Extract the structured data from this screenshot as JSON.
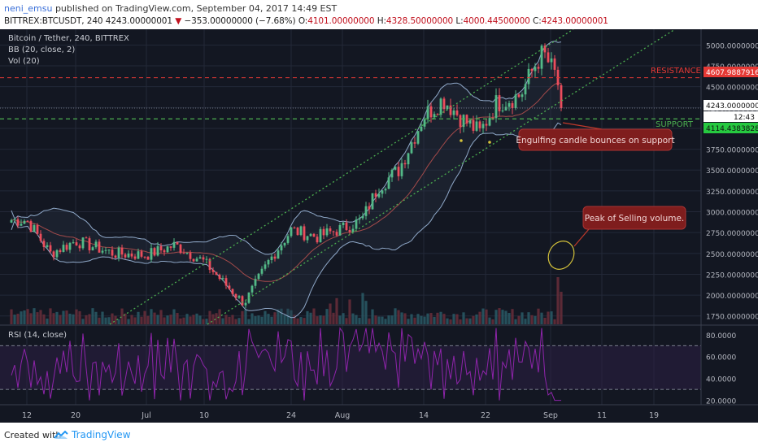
{
  "header": {
    "author": "neni_emsu",
    "published_text": "published on TradingView.com, September 04, 2017 14:49 EST",
    "symbol_line": "BITTREX:BTCUSDT, 240",
    "last_price": "4243.00000001",
    "change": "−353.00000000 (−7.68%)",
    "open_label": "O:",
    "open": "4101.00000000",
    "high_label": "H:",
    "high": "4328.50000000",
    "low_label": "L:",
    "low": "4000.44500000",
    "close_label": "C:",
    "close": "4243.00000001"
  },
  "legend": {
    "title": "Bitcoin / Tether, 240, BITTREX",
    "bb": "BB (20, close, 2)",
    "vol": "Vol (20)",
    "rsi": "RSI (14, close)"
  },
  "annotations": {
    "resistance_label": "RESISTANCE",
    "support_label": "SUPPORT",
    "callout_engulfing": "Engulfing candle bounces on support",
    "callout_volume": "Peak of Selling volume."
  },
  "price_badges": {
    "resistance": "4607.98879169",
    "last": "4243.00000001",
    "countdown": "12:43",
    "support": "4114.43838286"
  },
  "colors": {
    "background": "#131722",
    "up": "#53b987",
    "down": "#eb4d5c",
    "bb": "#8fa8c8",
    "trend": "#4caf50",
    "resistance": "#e53935",
    "support": "#4caf50",
    "rsi": "#8e24aa",
    "callout": "#7f1d1d"
  },
  "footer": {
    "created_with": "Created with",
    "brand": "TradingView"
  },
  "chart_data": [
    {
      "type": "candlestick",
      "title": "Bitcoin / Tether, 240, BITTREX",
      "x_ticks": [
        "12",
        "20",
        "Jul",
        "10",
        "24",
        "Aug",
        "14",
        "22",
        "Sep",
        "11",
        "19"
      ],
      "y_ticks": [
        "5000.00000000",
        "4750.00000000",
        "4500.00000000",
        "4250.00000000",
        "4000.00000000",
        "3750.00000000",
        "3500.00000000",
        "3250.00000000",
        "3000.00000000",
        "2750.00000000",
        "2500.00000000",
        "2250.00000000",
        "2000.00000000",
        "1750.00000000"
      ],
      "ylim": [
        1650,
        5150
      ],
      "close_path": [
        [
          "12",
          2900
        ],
        [
          "15",
          2500
        ],
        [
          "20",
          2650
        ],
        [
          "25",
          2500
        ],
        [
          "Jul",
          2480
        ],
        [
          "5",
          2600
        ],
        [
          "10",
          2400
        ],
        [
          "13",
          2150
        ],
        [
          "16",
          1900
        ],
        [
          "20",
          2400
        ],
        [
          "24",
          2780
        ],
        [
          "28",
          2700
        ],
        [
          "Aug",
          2800
        ],
        [
          "4",
          2900
        ],
        [
          "8",
          3300
        ],
        [
          "11",
          3500
        ],
        [
          "14",
          4150
        ],
        [
          "17",
          4350
        ],
        [
          "20",
          4100
        ],
        [
          "22",
          3950
        ],
        [
          "25",
          4300
        ],
        [
          "29",
          4400
        ],
        [
          "Sep 1",
          4800
        ],
        [
          "Sep 2",
          4900
        ],
        [
          "Sep 3",
          4600
        ],
        [
          "Sep 4",
          4243
        ]
      ],
      "resistance": 4607.98879169,
      "support": 4114.43838286,
      "last": 4243.00000001
    },
    {
      "type": "line",
      "title": "RSI (14, close)",
      "y_ticks": [
        "80.0000",
        "60.0000",
        "40.0000",
        "20.0000"
      ],
      "ylim": [
        16,
        88
      ],
      "levels": [
        70,
        30
      ]
    }
  ]
}
